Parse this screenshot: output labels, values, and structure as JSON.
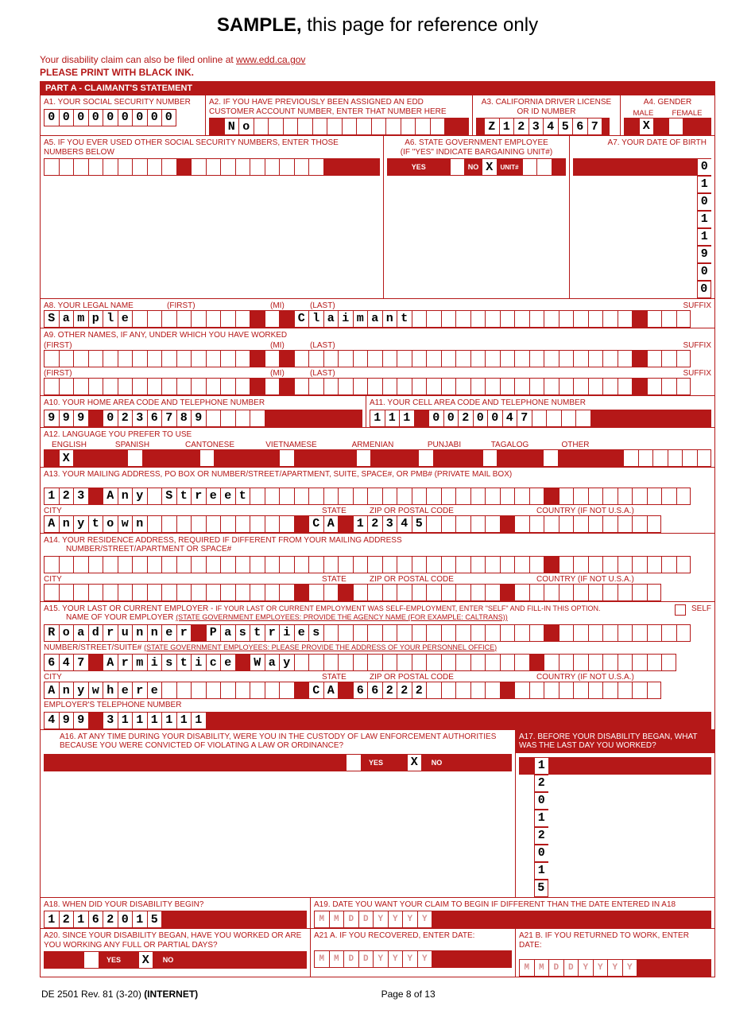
{
  "colors": {
    "red": "#b51818",
    "bg": "#ffffff"
  },
  "header": {
    "sample_bold": "SAMPLE,",
    "sample_rest": " this page for reference only",
    "online": "Your disability claim can also be filed online at ",
    "online_url": "www.edd.ca.gov",
    "black_ink": "PLEASE PRINT WITH BLACK INK."
  },
  "part_a": "PART A - CLAIMANT'S STATEMENT",
  "a1": {
    "label": "A1. YOUR SOCIAL SECURITY NUMBER",
    "value": "000000000"
  },
  "a2": {
    "label": "A2. IF YOU HAVE PREVIOUSLY BEEN ASSIGNED AN EDD CUSTOMER ACCOUNT NUMBER, ENTER THAT NUMBER HERE",
    "value": "No"
  },
  "a3": {
    "label": "A3.  CALIFORNIA DRIVER LICENSE OR ID NUMBER",
    "value": "Z1234567"
  },
  "a4": {
    "label": "A4.  GENDER",
    "male": "MALE",
    "female": "FEMALE",
    "male_x": "X"
  },
  "a5": {
    "label": "A5.  IF YOU EVER USED OTHER SOCIAL SECURITY NUMBERS, ENTER THOSE NUMBERS BELOW"
  },
  "a6": {
    "label": "A6.  STATE GOVERNMENT EMPLOYEE",
    "sub": "(IF \"YES\" INDICATE BARGAINING UNIT#)",
    "yes": "YES",
    "no": "NO",
    "no_x": "X",
    "unit": "UNIT#"
  },
  "a7": {
    "label": "A7. YOUR DATE OF BIRTH",
    "value": "01011900"
  },
  "a8": {
    "label": "A8. YOUR LEGAL NAME",
    "first": "(FIRST)",
    "mi": "(MI)",
    "last": "(LAST)",
    "suffix": "SUFFIX",
    "first_v": "Sample",
    "last_v": "Claimant"
  },
  "a9": {
    "label": "A9.  OTHER NAMES, IF ANY, UNDER WHICH YOU HAVE WORKED",
    "first": "(FIRST)",
    "mi": "(MI)",
    "last": "(LAST)",
    "suffix": "SUFFIX"
  },
  "a10": {
    "label": "A10.  YOUR HOME AREA CODE AND TELEPHONE NUMBER",
    "area": "999",
    "num": "0236789"
  },
  "a11": {
    "label": "A11.  YOUR CELL AREA CODE AND TELEPHONE NUMBER",
    "area": "111",
    "num": "0020047"
  },
  "a12": {
    "label": "A12.  LANGUAGE YOU PREFER TO USE",
    "english": "ENGLISH",
    "spanish": "SPANISH",
    "cantonese": "CANTONESE",
    "vietnamese": "VIETNAMESE",
    "armenian": "ARMENIAN",
    "punjabi": "PUNJABI",
    "tagalog": "TAGALOG",
    "other": "OTHER",
    "english_x": "X"
  },
  "a13": {
    "label": "A13.  YOUR MAILING ADDRESS, PO BOX OR NUMBER/STREET/APARTMENT, SUITE, SPACE#, OR PMB# (PRIVATE MAIL BOX)",
    "street": "123 Any Street",
    "city_l": "CITY",
    "state_l": "STATE",
    "zip_l": "ZIP OR POSTAL CODE",
    "country_l": "COUNTRY (IF NOT U.S.A.)",
    "city": "Anytown",
    "state": "CA",
    "zip": "12345"
  },
  "a14": {
    "label": "A14.  YOUR RESIDENCE ADDRESS, REQUIRED IF DIFFERENT FROM YOUR MAILING ADDRESS",
    "sub": "NUMBER/STREET/APARTMENT OR SPACE#"
  },
  "a15": {
    "label": "A15.  YOUR LAST OR CURRENT EMPLOYER - ",
    "label2": "IF YOUR LAST OR CURRENT EMPLOYMENT WAS SELF-EMPLOYMENT, ENTER \"SELF\" AND FILL-IN THIS OPTION.",
    "label3": "NAME OF YOUR EMPLOYER ",
    "label3u": "(STATE GOVERNMENT EMPLOYEES: PROVIDE THE AGENCY NAME (FOR EXAMPLE: CALTRANS))",
    "self": "SELF",
    "name": "Roadrunner Pastries",
    "addr_l": "NUMBER/STREET/SUITE# ",
    "addr_lu": "(STATE GOVERNMENT EMPLOYEES: PLEASE PROVIDE THE ADDRESS OF YOUR PERSONNEL OFFICE)",
    "addr": "647 Armistice Way",
    "city": "Anywhere",
    "state": "CA",
    "zip": "66222",
    "phone_l": "EMPLOYER'S TELEPHONE NUMBER",
    "area": "499",
    "num": "3111111"
  },
  "a16": {
    "label": "A16.  AT ANY TIME DURING YOUR DISABILITY, WERE YOU IN THE CUSTODY OF LAW ENFORCEMENT AUTHORITIES BECAUSE YOU WERE CONVICTED OF VIOLATING A LAW OR ORDINANCE?",
    "yes": "YES",
    "no": "NO",
    "no_x": "X"
  },
  "a17": {
    "label": "A17.  BEFORE YOUR DISABILITY BEGAN, WHAT WAS THE LAST DAY YOU WORKED?",
    "value": "12012015"
  },
  "a18": {
    "label": "A18.  WHEN DID YOUR DISABILITY BEGIN?",
    "value": "12162015"
  },
  "a19": {
    "label": "A19.  DATE YOU WANT YOUR CLAIM TO BEGIN IF DIFFERENT THAN THE DATE ENTERED IN A18",
    "hint": "MMDDYYYY"
  },
  "a20": {
    "label": "A20.  SINCE YOUR DISABILITY BEGAN, HAVE YOU WORKED OR ARE YOU WORKING ANY FULL OR PARTIAL DAYS?",
    "yes": "YES",
    "no": "NO",
    "no_x": "X"
  },
  "a21a": {
    "label": "A21 A.  IF YOU RECOVERED, ENTER DATE:",
    "hint": "MMDDYYYY"
  },
  "a21b": {
    "label": "A21 B.  IF YOU RETURNED TO WORK, ENTER DATE:",
    "hint": "MMDDYYYY"
  },
  "footer": {
    "left1": "DE 2501 Rev. 81 (3-20) ",
    "left2": "(INTERNET)",
    "center": "Page 8 of 13"
  }
}
